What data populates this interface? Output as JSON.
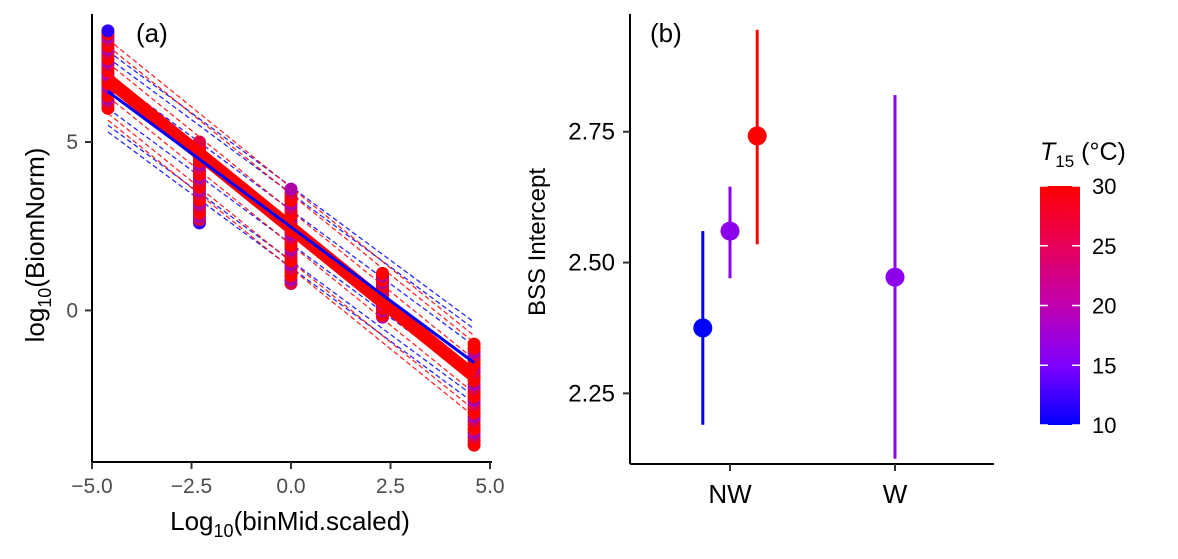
{
  "chart_data": [
    {
      "type": "scatter",
      "panel_label": "(a)",
      "xlabel": {
        "base": "Log",
        "sub": "10",
        "rest": "(binMid.scaled)"
      },
      "ylabel": {
        "base": "log",
        "sub": "10",
        "rest": "(BiomNorm)"
      },
      "xlim": [
        -5.0,
        5.0
      ],
      "ylim": [
        -4.5,
        8.8
      ],
      "x_ticks": [
        -5.0,
        -2.5,
        0.0,
        2.5,
        5.0
      ],
      "x_tick_labels": [
        "−5.0",
        "−2.5",
        "0.0",
        "2.5",
        "5.0"
      ],
      "y_ticks": [
        0,
        5
      ],
      "y_tick_labels": [
        "0",
        "5"
      ],
      "bins_x": [
        -4.6,
        -2.3,
        0.0,
        2.3,
        4.6
      ],
      "point_ranges": [
        {
          "x": -4.6,
          "y_min": 6.0,
          "y_max": 8.3
        },
        {
          "x": -2.3,
          "y_min": 2.6,
          "y_max": 5.0
        },
        {
          "x": 0.0,
          "y_min": 0.8,
          "y_max": 3.6
        },
        {
          "x": 2.3,
          "y_min": -0.2,
          "y_max": 1.1
        },
        {
          "x": 4.6,
          "y_min": -4.0,
          "y_max": -1.0
        }
      ],
      "point_temperatures": [
        12,
        20,
        26,
        30
      ],
      "fits": [
        {
          "temperature": 10,
          "x": [
            -4.6,
            4.6
          ],
          "y": [
            6.5,
            -1.55
          ]
        },
        {
          "temperature": 30,
          "x": [
            -4.6,
            4.6
          ],
          "y": [
            6.85,
            -1.95
          ]
        }
      ],
      "ci_offsets": [
        0.5,
        1.0,
        1.2
      ],
      "grid": false
    },
    {
      "type": "pointrange",
      "panel_label": "(b)",
      "ylabel": "BSS Intercept",
      "categories": [
        "NW",
        "W"
      ],
      "ylim": [
        2.115,
        2.975
      ],
      "y_ticks": [
        2.25,
        2.5,
        2.75
      ],
      "y_tick_labels": [
        "2.25",
        "2.50",
        "2.75"
      ],
      "points": [
        {
          "category": "NW",
          "dodge": -0.16,
          "temperature": 10,
          "y": 2.375,
          "lo": 2.19,
          "hi": 2.56
        },
        {
          "category": "NW",
          "dodge": 0.0,
          "temperature": 16,
          "y": 2.56,
          "lo": 2.47,
          "hi": 2.645
        },
        {
          "category": "NW",
          "dodge": 0.16,
          "temperature": 30,
          "y": 2.742,
          "lo": 2.535,
          "hi": 2.945
        },
        {
          "category": "W",
          "dodge": 0.0,
          "temperature": 16,
          "y": 2.472,
          "lo": 2.125,
          "hi": 2.82
        }
      ],
      "grid": false
    }
  ],
  "legend": {
    "title_symbol": "T",
    "title_sub": "15",
    "title_unit": " (°C)",
    "colorscale": [
      "#0000ff",
      "#ff0000"
    ],
    "range": [
      10,
      30
    ],
    "ticks": [
      10,
      15,
      20,
      25,
      30
    ],
    "tick_labels": [
      "10",
      "15",
      "20",
      "25",
      "30"
    ],
    "placement": "right"
  }
}
